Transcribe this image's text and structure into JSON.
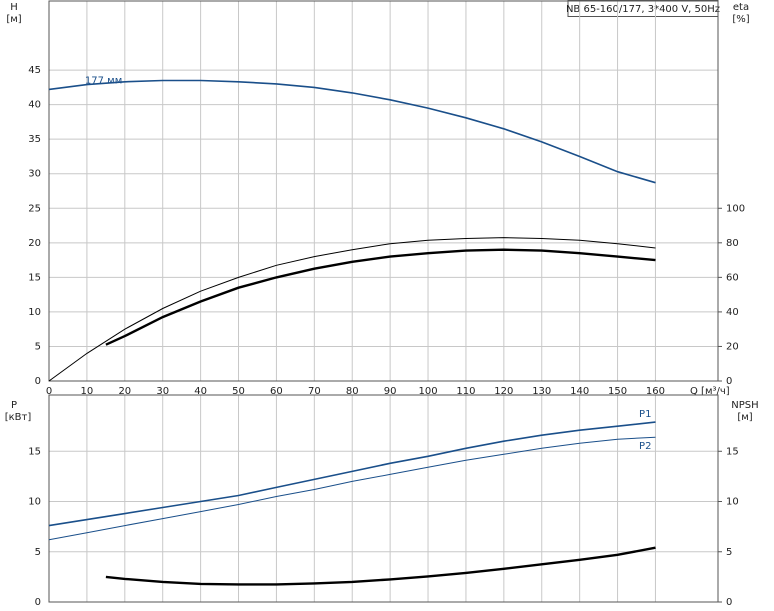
{
  "chart_data": [
    {
      "type": "line",
      "title": "NB 65-160/177, 3*400 V, 50Hz",
      "y_label": "H",
      "y_unit": "[м]",
      "y2_label": "eta",
      "y2_unit": "[%]",
      "x_label": "Q [м³/ч]",
      "xlim": [
        0,
        176.5
      ],
      "xticks": [
        0,
        10,
        20,
        30,
        40,
        50,
        60,
        70,
        80,
        90,
        100,
        110,
        120,
        130,
        140,
        150,
        160
      ],
      "ylim": [
        0,
        55
      ],
      "yticks": [
        0,
        5,
        10,
        15,
        20,
        25,
        30,
        35,
        40,
        45
      ],
      "y2lim": [
        0,
        220
      ],
      "y2ticks": [
        0,
        20,
        40,
        60,
        80,
        100
      ],
      "grid": true,
      "series": [
        {
          "name": "177 мм",
          "color": "#1a4f8a",
          "x": [
            0,
            10,
            20,
            30,
            40,
            50,
            60,
            70,
            80,
            90,
            100,
            110,
            120,
            130,
            140,
            150,
            160
          ],
          "values": [
            42.2,
            42.9,
            43.3,
            43.5,
            43.5,
            43.3,
            43.0,
            42.5,
            41.7,
            40.7,
            39.5,
            38.1,
            36.5,
            34.6,
            32.5,
            30.3,
            28.7
          ]
        },
        {
          "color": "#000000",
          "axis": "y2",
          "x": [
            0,
            10,
            20,
            30,
            40,
            50,
            60,
            70,
            80,
            90,
            100,
            110,
            120,
            130,
            140,
            150,
            160
          ],
          "values": [
            0,
            16,
            30,
            42,
            52,
            60,
            67,
            72,
            76,
            79.5,
            81.5,
            82.5,
            83,
            82.5,
            81.5,
            79.5,
            77
          ]
        },
        {
          "color": "#000000",
          "axis": "y2",
          "x": [
            15,
            20,
            30,
            40,
            50,
            60,
            70,
            80,
            90,
            100,
            110,
            120,
            130,
            140,
            150,
            160
          ],
          "values": [
            21,
            26,
            37,
            46,
            54,
            60,
            65,
            69,
            72,
            74,
            75.5,
            76,
            75.5,
            74,
            72,
            70
          ]
        }
      ]
    },
    {
      "type": "line",
      "y_label": "P",
      "y_unit": "[кВт]",
      "y2_label": "NPSH",
      "y2_unit": "[м]",
      "xlim": [
        0,
        176.5
      ],
      "ylim": [
        0,
        20.6
      ],
      "yticks": [
        0,
        5,
        10,
        15
      ],
      "y2lim": [
        0,
        20.6
      ],
      "y2ticks": [
        0,
        5,
        10,
        15
      ],
      "grid": true,
      "series": [
        {
          "name": "P1",
          "color": "#1a4f8a",
          "x": [
            0,
            15,
            20,
            30,
            40,
            50,
            60,
            70,
            80,
            90,
            100,
            110,
            120,
            130,
            140,
            150,
            160
          ],
          "values": [
            7.6,
            8.5,
            8.8,
            9.4,
            10.0,
            10.6,
            11.4,
            12.2,
            13.0,
            13.8,
            14.5,
            15.3,
            16.0,
            16.6,
            17.1,
            17.5,
            17.9
          ]
        },
        {
          "name": "P2",
          "color": "#1a4f8a",
          "x": [
            0,
            10,
            20,
            30,
            40,
            50,
            60,
            70,
            80,
            90,
            100,
            110,
            120,
            130,
            140,
            150,
            160
          ],
          "values": [
            6.2,
            6.9,
            7.6,
            8.3,
            9.0,
            9.7,
            10.5,
            11.2,
            12.0,
            12.7,
            13.4,
            14.1,
            14.7,
            15.3,
            15.8,
            16.2,
            16.4
          ]
        },
        {
          "color": "#000000",
          "axis": "y2",
          "x": [
            15,
            20,
            30,
            40,
            50,
            60,
            70,
            80,
            90,
            100,
            110,
            120,
            130,
            140,
            150,
            160
          ],
          "values": [
            2.5,
            2.3,
            2.0,
            1.8,
            1.75,
            1.75,
            1.85,
            2.0,
            2.25,
            2.55,
            2.9,
            3.3,
            3.75,
            4.2,
            4.7,
            5.4
          ]
        }
      ]
    }
  ]
}
